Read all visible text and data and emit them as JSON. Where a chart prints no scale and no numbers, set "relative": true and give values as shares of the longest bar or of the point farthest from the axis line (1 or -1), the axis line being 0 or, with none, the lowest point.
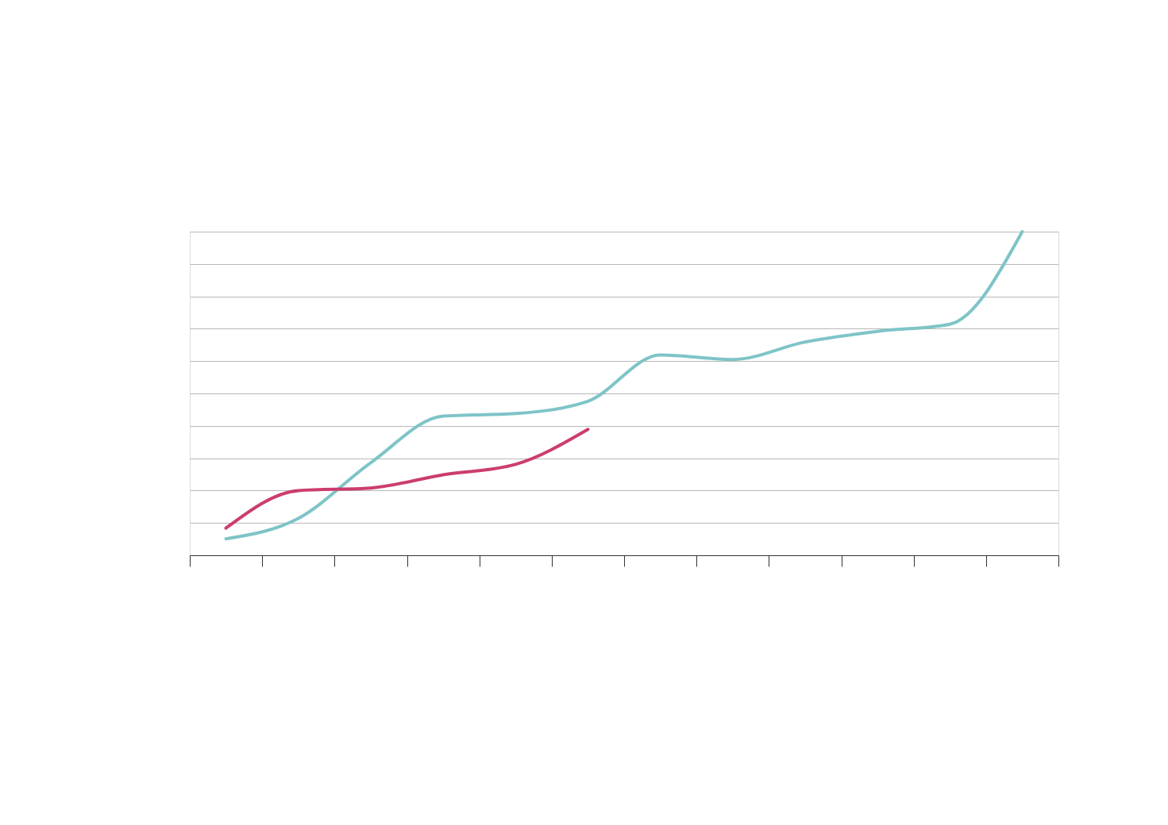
{
  "chart_data": {
    "type": "line",
    "relative": true,
    "grid": "y",
    "line_style": "solid",
    "marker": "none",
    "categories": [
      null,
      null,
      null,
      null,
      null,
      null,
      null,
      null,
      null,
      null,
      null,
      null
    ],
    "series": [
      {
        "color": "#7ec4c8",
        "values": [
          0.051,
          0.114,
          0.286,
          0.43,
          0.438,
          0.476,
          0.619,
          0.605,
          0.659,
          0.692,
          0.714,
          1
        ]
      },
      {
        "color": "#cc3d6e",
        "values": [
          0.084,
          0.2,
          0.208,
          0.249,
          0.281,
          0.389,
          null,
          null,
          null,
          null,
          null,
          null
        ]
      }
    ]
  }
}
